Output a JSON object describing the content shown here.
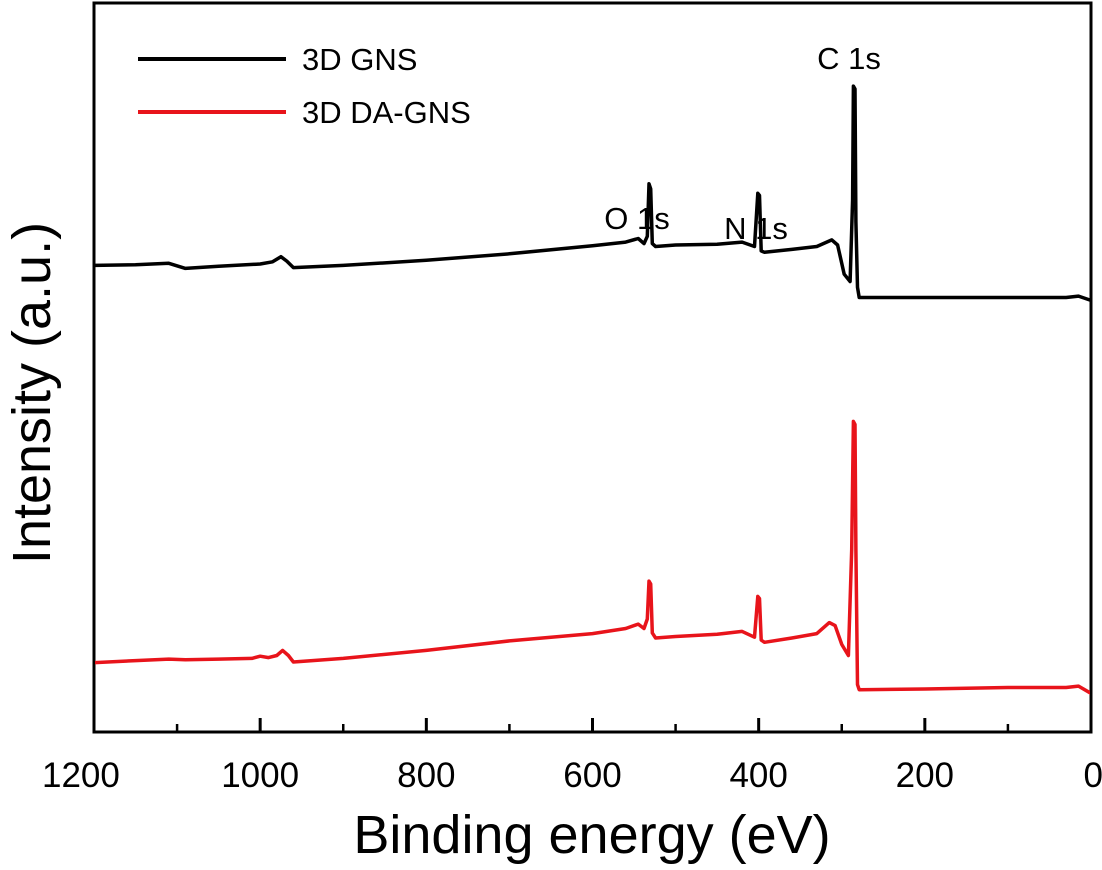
{
  "chart_data": {
    "type": "line",
    "title": "",
    "xlabel": "Binding energy (eV)",
    "ylabel": "Intensity (a.u.)",
    "xlim": [
      1200,
      0
    ],
    "ylim": [
      0,
      100
    ],
    "x_reversed": true,
    "x_ticks": [
      1200,
      1000,
      800,
      600,
      400,
      200,
      0
    ],
    "y_ticks_visible": false,
    "legend_position": "top-left",
    "legend": [
      "3D GNS",
      "3D DA-GNS"
    ],
    "annotations": [
      {
        "text": "C 1s",
        "x": 285
      },
      {
        "text": "O 1s",
        "x": 532
      },
      {
        "text": "N 1s",
        "x": 400
      }
    ],
    "series": [
      {
        "name": "3D GNS",
        "color": "#000000",
        "points": [
          [
            1200,
            64.0
          ],
          [
            1150,
            64.1
          ],
          [
            1110,
            64.3
          ],
          [
            1090,
            63.6
          ],
          [
            1050,
            63.9
          ],
          [
            1000,
            64.2
          ],
          [
            985,
            64.5
          ],
          [
            975,
            65.2
          ],
          [
            968,
            64.6
          ],
          [
            960,
            63.7
          ],
          [
            900,
            64.0
          ],
          [
            800,
            64.7
          ],
          [
            700,
            65.6
          ],
          [
            600,
            66.7
          ],
          [
            560,
            67.2
          ],
          [
            545,
            67.7
          ],
          [
            538,
            67.0
          ],
          [
            534,
            68.0
          ],
          [
            532,
            75.2
          ],
          [
            530,
            74.5
          ],
          [
            528,
            67.0
          ],
          [
            524,
            66.6
          ],
          [
            500,
            66.8
          ],
          [
            450,
            66.9
          ],
          [
            420,
            67.2
          ],
          [
            405,
            66.6
          ],
          [
            401,
            73.9
          ],
          [
            399,
            73.6
          ],
          [
            397,
            66.0
          ],
          [
            393,
            65.8
          ],
          [
            360,
            66.2
          ],
          [
            330,
            66.6
          ],
          [
            312,
            67.5
          ],
          [
            305,
            66.8
          ],
          [
            297,
            62.8
          ],
          [
            290,
            61.8
          ],
          [
            287,
            73.0
          ],
          [
            286,
            88.6
          ],
          [
            284,
            88.2
          ],
          [
            283,
            70.0
          ],
          [
            281,
            61.0
          ],
          [
            279,
            59.6
          ],
          [
            200,
            59.6
          ],
          [
            100,
            59.6
          ],
          [
            30,
            59.6
          ],
          [
            15,
            59.8
          ],
          [
            0,
            59.2
          ]
        ]
      },
      {
        "name": "3D DA-GNS",
        "color": "#e8141b",
        "points": [
          [
            1200,
            9.5
          ],
          [
            1150,
            9.8
          ],
          [
            1110,
            10.0
          ],
          [
            1090,
            9.9
          ],
          [
            1050,
            10.0
          ],
          [
            1010,
            10.1
          ],
          [
            1000,
            10.4
          ],
          [
            990,
            10.2
          ],
          [
            980,
            10.5
          ],
          [
            973,
            11.2
          ],
          [
            966,
            10.5
          ],
          [
            960,
            9.6
          ],
          [
            900,
            10.1
          ],
          [
            800,
            11.2
          ],
          [
            700,
            12.5
          ],
          [
            600,
            13.5
          ],
          [
            560,
            14.2
          ],
          [
            545,
            14.8
          ],
          [
            538,
            14.2
          ],
          [
            534,
            15.5
          ],
          [
            532,
            20.7
          ],
          [
            530,
            20.3
          ],
          [
            528,
            13.6
          ],
          [
            524,
            12.9
          ],
          [
            500,
            13.1
          ],
          [
            450,
            13.4
          ],
          [
            420,
            13.8
          ],
          [
            405,
            13.0
          ],
          [
            401,
            18.6
          ],
          [
            399,
            18.3
          ],
          [
            397,
            12.6
          ],
          [
            393,
            12.3
          ],
          [
            360,
            12.9
          ],
          [
            330,
            13.5
          ],
          [
            315,
            15.0
          ],
          [
            308,
            14.6
          ],
          [
            300,
            12.0
          ],
          [
            292,
            10.5
          ],
          [
            288,
            25.0
          ],
          [
            286,
            42.6
          ],
          [
            284,
            42.2
          ],
          [
            283,
            25.0
          ],
          [
            281,
            6.5
          ],
          [
            279,
            5.8
          ],
          [
            200,
            5.9
          ],
          [
            100,
            6.1
          ],
          [
            30,
            6.1
          ],
          [
            15,
            6.3
          ],
          [
            0,
            5.3
          ]
        ]
      }
    ]
  }
}
